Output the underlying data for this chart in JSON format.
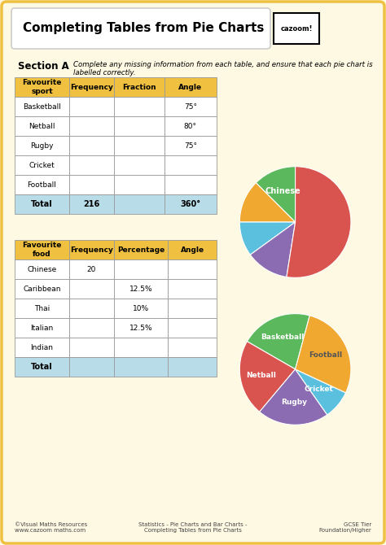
{
  "title": "Completing Tables from Pie Charts",
  "bg_color": "#fdf9e3",
  "outer_border_color": "#f0c040",
  "section_label": "Section A",
  "section_text": "Complete any missing information from each table, and ensure that each pie chart is\nlabelled correctly.",
  "table1": {
    "header": [
      "Favourite\nsport",
      "Frequency",
      "Fraction",
      "Angle"
    ],
    "rows": [
      [
        "Basketball",
        "",
        "",
        "75°"
      ],
      [
        "Netball",
        "",
        "",
        "80°"
      ],
      [
        "Rugby",
        "",
        "",
        "75°"
      ],
      [
        "Cricket",
        "",
        "",
        ""
      ],
      [
        "Football",
        "",
        "",
        ""
      ]
    ],
    "total_row": [
      "Total",
      "216",
      "",
      "360°"
    ],
    "header_bg": "#f0c040",
    "total_bg": "#b8dce8"
  },
  "pie1": {
    "labels": [
      "Basketball",
      "Netball",
      "Rugby",
      "Cricket",
      "Football"
    ],
    "sizes": [
      75,
      80,
      75,
      30,
      100
    ],
    "colors": [
      "#5cb85c",
      "#d9534f",
      "#8b6bb1",
      "#5bc0de",
      "#f0a830"
    ],
    "start_angle": 75
  },
  "pie1_label_colors": [
    "white",
    "white",
    "white",
    "white",
    "#555555"
  ],
  "pie1_label_radii": [
    0.62,
    0.62,
    0.6,
    0.55,
    0.6
  ],
  "table2": {
    "header": [
      "Favourite\nfood",
      "Frequency",
      "Percentage",
      "Angle"
    ],
    "rows": [
      [
        "Chinese",
        "20",
        "",
        ""
      ],
      [
        "Caribbean",
        "",
        "12.5%",
        ""
      ],
      [
        "Thai",
        "",
        "10%",
        ""
      ],
      [
        "Italian",
        "",
        "12.5%",
        ""
      ],
      [
        "Indian",
        "",
        "",
        ""
      ]
    ],
    "total_row": [
      "Total",
      "",
      "",
      ""
    ],
    "header_bg": "#f0c040",
    "total_bg": "#b8dce8"
  },
  "pie2": {
    "labels": [
      "Chinese",
      "Caribbean",
      "Thai",
      "Italian",
      "Indian"
    ],
    "sizes": [
      45,
      45,
      36,
      45,
      189
    ],
    "colors": [
      "#5cb85c",
      "#f0a830",
      "#5bc0de",
      "#8b6bb1",
      "#d9534f"
    ],
    "start_angle": 90
  },
  "pie2_label_show": [
    true,
    false,
    false,
    false,
    false
  ],
  "pie2_label_colors": [
    "white",
    "white",
    "white",
    "white",
    "white"
  ],
  "footer_left": "©Visual Maths Resources\nwww.cazoom maths.com",
  "footer_center": "Statistics - Pie Charts and Bar Charts -\nCompleting Tables from Pie Charts",
  "footer_right": "GCSE Tier\nFoundation/Higher"
}
